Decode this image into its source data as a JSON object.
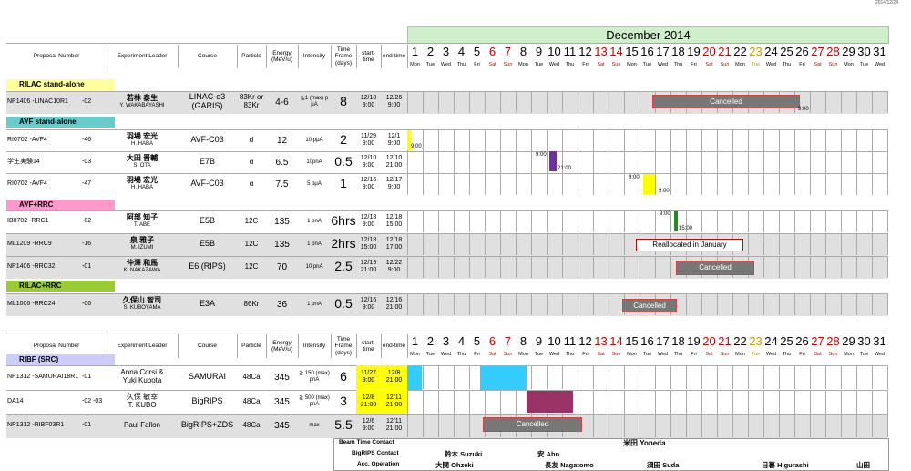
{
  "stamp": "2014/12/24",
  "month_title": "December 2014",
  "headers": {
    "proposal": "Proposal Number",
    "leader": "Experiment Leader",
    "course": "Course",
    "particle": "Particle",
    "energy": "Energy (MeV/u)",
    "intensity": "Intensity",
    "timeframe": "Time Frame (days)",
    "start": "start-time",
    "end": "end-time"
  },
  "days": [
    "1",
    "2",
    "3",
    "4",
    "5",
    "6",
    "7",
    "8",
    "9",
    "10",
    "11",
    "12",
    "13",
    "14",
    "15",
    "16",
    "17",
    "18",
    "19",
    "20",
    "21",
    "22",
    "23",
    "24",
    "25",
    "26",
    "27",
    "28",
    "29",
    "30",
    "31"
  ],
  "dows": [
    "Mon",
    "Tue",
    "Wed",
    "Thu",
    "Fri",
    "Sat",
    "Sun",
    "Mon",
    "Tue",
    "Wed",
    "Thu",
    "Fri",
    "Sat",
    "Sun",
    "Mon",
    "Tue",
    "Wed",
    "Thu",
    "Fri",
    "Sat",
    "Sun",
    "Mon",
    "Tue",
    "Wed",
    "Thu",
    "Fri",
    "Sat",
    "Sun",
    "Mon",
    "Tue",
    "Wed"
  ],
  "sections": {
    "rilac": "RILAC stand-alone",
    "avf": "AVF stand-alone",
    "avfrrc": "AVF+RRC",
    "rilacrrc": "RILAC+RRC",
    "ribf": "RIBF (SRC)"
  },
  "rows": [
    {
      "id": "NP1406 -LINAC10R1",
      "sub": "-02",
      "leader": "若林 泰生",
      "leader_en": "Y. WAKABAYASHI",
      "course": "LINAC-e3 (GARIS)",
      "particle": "83Kr or 83Kr",
      "energy": "4-6",
      "intensity": "≧1 (max) p μA",
      "days": "8",
      "start": "12/18 9:00",
      "end": "12/26 9:00"
    },
    {
      "id": "RI0702 -AVF4",
      "sub": "-46",
      "leader": "羽場 宏光",
      "leader_en": "H. HABA",
      "course": "AVF-C03",
      "particle": "d",
      "energy": "12",
      "intensity": "10 pμA",
      "days": "2",
      "start": "11/29 9:00",
      "end": "12/1 9:00"
    },
    {
      "id": "学生実験14",
      "sub": "-03",
      "leader": "大田 晋輔",
      "leader_en": "S. OTA",
      "course": "E7B",
      "particle": "α",
      "energy": "6.5",
      "intensity": "10pnA",
      "days": "0.5",
      "start": "12/10 9:00",
      "end": "12/10 21:00"
    },
    {
      "id": "RI0702 -AVF4",
      "sub": "-47",
      "leader": "羽場 宏光",
      "leader_en": "H. HABA",
      "course": "AVF-C03",
      "particle": "α",
      "energy": "7.5",
      "intensity": "5 pμA",
      "days": "1",
      "start": "12/16 9:00",
      "end": "12/17 9:00"
    },
    {
      "id": "IB0702 -RRC1",
      "sub": "-82",
      "leader": "阿部 知子",
      "leader_en": "T. ABE",
      "course": "E5B",
      "particle": "12C",
      "energy": "135",
      "intensity": "1 pnA",
      "days": "6hrs",
      "start": "12/18 9:00",
      "end": "12/18 15:00"
    },
    {
      "id": "ML1209 -RRC9",
      "sub": "-16",
      "leader": "泉 雅子",
      "leader_en": "M. IZUMI",
      "course": "E5B",
      "particle": "12C",
      "energy": "135",
      "intensity": "1 pnA",
      "days": "2hrs",
      "start": "12/18 15:00",
      "end": "12/18 17:00"
    },
    {
      "id": "NP1406 -RRC32",
      "sub": "-01",
      "leader": "仲澤 和馬",
      "leader_en": "K. NAKAZAWA",
      "course": "E6 (RIPS)",
      "particle": "12C",
      "energy": "70",
      "intensity": "10 pnA",
      "days": "2.5",
      "start": "12/19 21:00",
      "end": "12/22 9:00"
    },
    {
      "id": "ML1006 -RRC24",
      "sub": "-06",
      "leader": "久保山 智司",
      "leader_en": "S. KUBOYAMA",
      "course": "E3A",
      "particle": "86Kr",
      "energy": "36",
      "intensity": "1 pnA",
      "days": "0.5",
      "start": "12/16 9:00",
      "end": "12/16 21:00"
    },
    {
      "id": "NP1312 -SAMURAI18R1",
      "sub": "-01",
      "leader": "Anna Corsi &",
      "leader_en": "Yuki Kubota",
      "course": "SAMURAI",
      "particle": "48Ca",
      "energy": "345",
      "intensity": "≧ 150 (max) pnA",
      "days": "6",
      "start": "11/27 9:00",
      "end": "12/8 21:00"
    },
    {
      "id": "DA14",
      "sub": "-02 -03",
      "leader": "久保 敏幸",
      "leader_en": "T. KUBO",
      "course": "BigRIPS",
      "particle": "48Ca",
      "energy": "345",
      "intensity": "≧ 500 (max) pnA",
      "days": "3",
      "start": "12/8 21:00",
      "end": "12/11 21:00"
    },
    {
      "id": "NP1312 -RIBF03R1",
      "sub": "-01",
      "leader": "Paul Fallon",
      "leader_en": "",
      "course": "BigRIPS+ZDS",
      "particle": "48Ca",
      "energy": "345",
      "intensity": "max",
      "days": "5.5",
      "start": "12/6 9:00",
      "end": "12/11 21:00"
    }
  ],
  "gantt_labels": {
    "cancelled": "Cancelled",
    "reallocated": "Reallocated in January"
  },
  "gantt_times": {
    "t900": "9:00",
    "t2100": "21:00",
    "t1500": "15:00",
    "t1700": "17:00"
  },
  "footer": {
    "beam_time": "Beam Time Contact",
    "beam_name": "米田 Yoneda",
    "bigrips": "BigRIPS Contact",
    "bigrips1": "鈴木 Suzuki",
    "bigrips2": "安 Ahn",
    "acc": "Acc. Operation",
    "acc1": "大関 Ohzeki",
    "acc2": "長友 Nagatomo",
    "acc3": "須田 Suda",
    "acc4": "日暮 Higurashi",
    "acc5": "山田"
  },
  "colors": {
    "month_bg": "#cfeeca",
    "rilac": "#ffff99",
    "avf": "#66cccc",
    "avfrrc": "#ff99cc",
    "rilacrrc": "#99cc33",
    "ribf": "#ccccff"
  }
}
